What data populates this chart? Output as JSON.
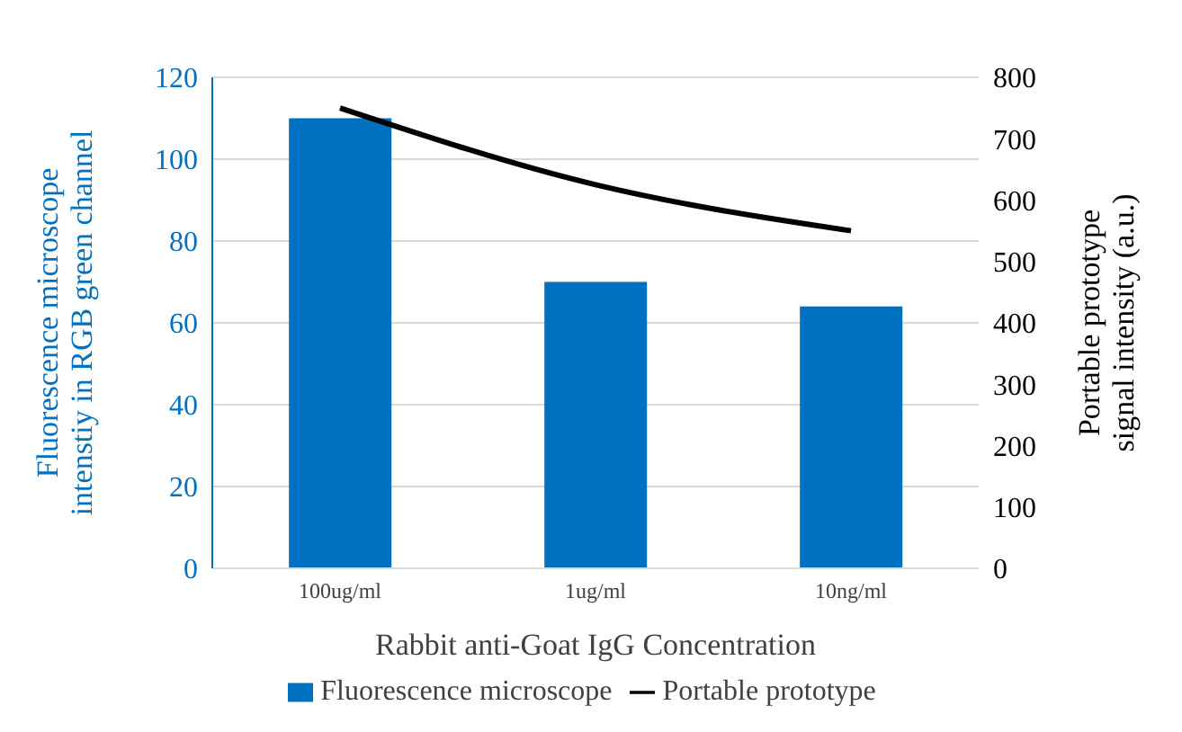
{
  "chart_data": {
    "type": "bar",
    "categories": [
      "100ug/ml",
      "1ug/ml",
      "10ng/ml"
    ],
    "series": [
      {
        "name": "Fluorescence microscope",
        "color": "#0070c0",
        "values": [
          110,
          70,
          64
        ]
      },
      {
        "name": "Portable prototype",
        "color": "#000000",
        "type": "line",
        "axis": "y2",
        "values": [
          750,
          625,
          550
        ]
      }
    ],
    "xlabel": "Rabbit anti-Goat IgG Concentration",
    "ylabel": "Fluorescence microscope\nintenstiy in RGB green channel",
    "y2label": "Portable prototype\nsignal intensity (a.u.)",
    "ylim": [
      0,
      120
    ],
    "yticks": [
      0,
      20,
      40,
      60,
      80,
      100,
      120
    ],
    "y2lim": [
      0,
      800
    ],
    "y2ticks": [
      0,
      100,
      200,
      300,
      400,
      500,
      600,
      700,
      800
    ],
    "grid": "y",
    "legend": "bottom",
    "marker": "none"
  }
}
